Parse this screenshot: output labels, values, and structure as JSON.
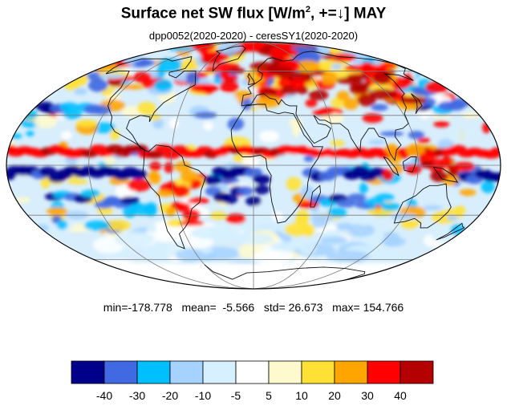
{
  "title": {
    "main": "Surface net SW flux [W/m",
    "sup": "2",
    "tail": ", +=↓]  MAY"
  },
  "subtitle": "dpp0052(2020-2020) - ceresSY1(2020-2020)",
  "stats": {
    "min_label": "min=",
    "min": "-178.778",
    "mean_label": "mean=",
    "mean": "-5.566",
    "std_label": "std=",
    "std": "26.673",
    "max_label": "max=",
    "max": "154.766"
  },
  "map": {
    "projection": "mollweide",
    "graticule": true,
    "coastlines": true
  },
  "colorbar": {
    "colors": [
      "#00008b",
      "#4169e1",
      "#00bfff",
      "#a6d2ff",
      "#d6f0ff",
      "#ffffff",
      "#fffacd",
      "#ffe135",
      "#ffa500",
      "#ff0000",
      "#b40000"
    ],
    "tick_labels": [
      "-40",
      "-30",
      "-20",
      "-10",
      "-5",
      "5",
      "10",
      "20",
      "30",
      "40"
    ]
  }
}
